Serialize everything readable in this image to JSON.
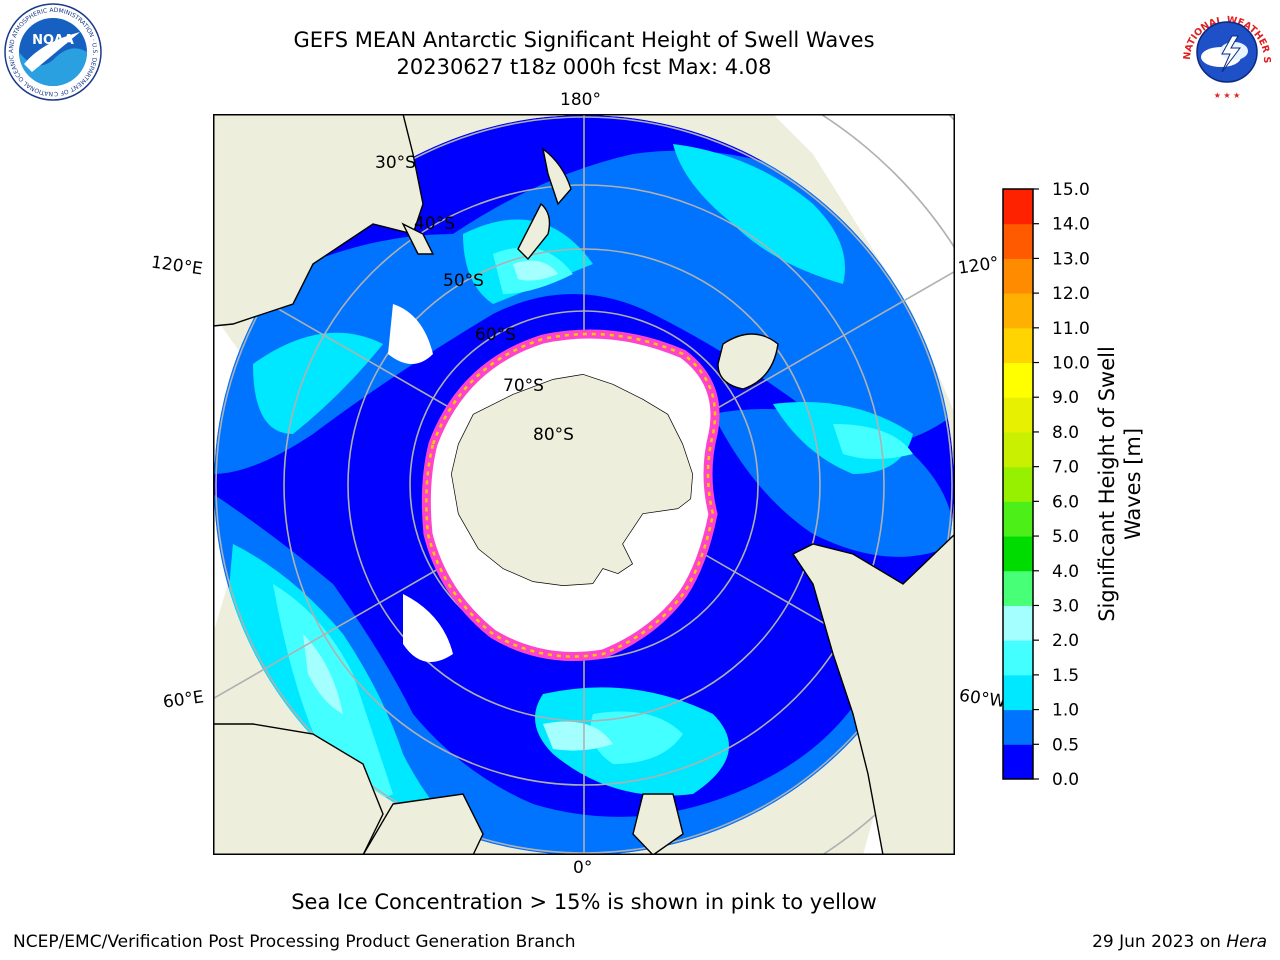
{
  "header": {
    "title_line1": "GEFS MEAN Antarctic Significant Height of Swell Waves",
    "title_line2": "20230627 t18z 000h fcst   Max: 4.08"
  },
  "logos": {
    "noaa": {
      "text": "NOAA",
      "ring_text": "NATIONAL OCEANIC AND ATMOSPHERIC ADMINISTRATION · U.S. DEPARTMENT OF COMMERCE"
    },
    "nws": {
      "ring_text": "NATIONAL WEATHER SERVICE"
    }
  },
  "map": {
    "projection": "south-polar-stereographic",
    "longitude_labels": {
      "top": "180°",
      "bottom": "0°",
      "left_upper": "120°E",
      "left_lower": "60°E",
      "right_upper": "120°",
      "right_lower": "60°W"
    },
    "latitude_labels": [
      "30°S",
      "40°S",
      "50°S",
      "60°S",
      "70°S",
      "80°S"
    ],
    "colors": {
      "land": "#eeeedc",
      "sea_ice_white": "#ffffff",
      "ice_edge_pink": "#ff44cc",
      "ice_edge_yellow": "#ffcc00",
      "grid": "#b0b0b0"
    }
  },
  "colorbar": {
    "label_line1": "Significant Height of Swell",
    "label_line2": "Waves [m]",
    "ticks": [
      "0.0",
      "0.5",
      "1.0",
      "1.5",
      "2.0",
      "3.0",
      "4.0",
      "5.0",
      "6.0",
      "7.0",
      "8.0",
      "9.0",
      "10.0",
      "11.0",
      "12.0",
      "13.0",
      "14.0",
      "15.0"
    ],
    "colors": [
      "#0000ff",
      "#0074ff",
      "#00e8ff",
      "#44ffff",
      "#a4ffff",
      "#48ff78",
      "#00dc00",
      "#4cf018",
      "#96f000",
      "#c8f000",
      "#e6f000",
      "#ffff00",
      "#ffd400",
      "#ffb000",
      "#ff8c00",
      "#ff5a00",
      "#ff2200"
    ]
  },
  "caption": "Sea Ice Concentration > 15% is shown in pink to yellow",
  "footer": {
    "left": "NCEP/EMC/Verification Post Processing Product Generation Branch",
    "right_date": "29 Jun 2023 on ",
    "right_host": "Hera"
  }
}
